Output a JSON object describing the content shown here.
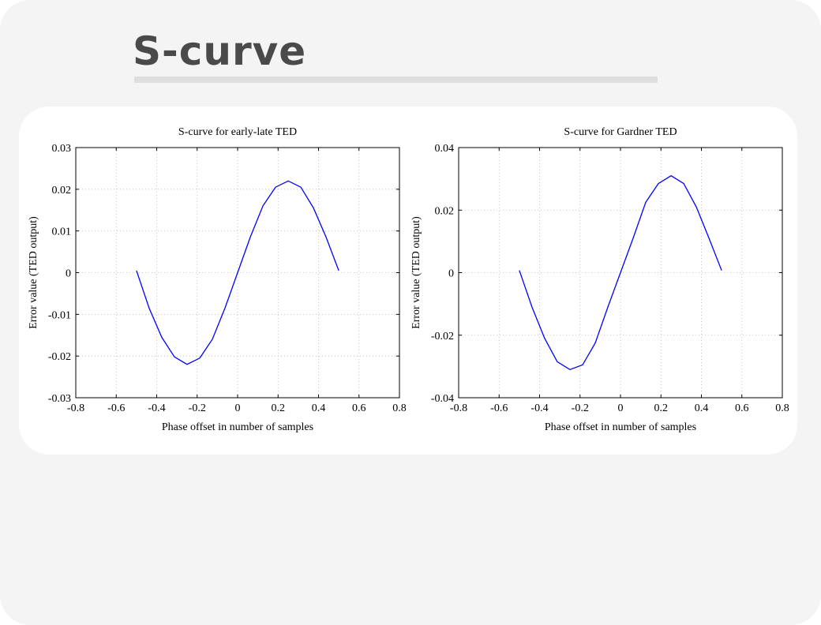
{
  "slide": {
    "title": "S-curve"
  },
  "chart_data": [
    {
      "type": "line",
      "title": "S-curve for early-late TED",
      "xlabel": "Phase offset in number of samples",
      "ylabel": "Error value (TED output)",
      "xlim": [
        -0.8,
        0.8
      ],
      "ylim": [
        -0.03,
        0.03
      ],
      "xticks": [
        "-0.8",
        "-0.6",
        "-0.4",
        "-0.2",
        "0",
        "0.2",
        "0.4",
        "0.6",
        "0.8"
      ],
      "yticks": [
        "0.03",
        "0.02",
        "0.01",
        "0",
        "-0.01",
        "-0.02",
        "-0.03"
      ],
      "grid": true,
      "line_color": "#0000ff",
      "series": [
        {
          "x": [
            -0.5,
            -0.4375,
            -0.375,
            -0.3125,
            -0.25,
            -0.1875,
            -0.125,
            -0.0625,
            0,
            0.0625,
            0.125,
            0.1875,
            0.25,
            0.3125,
            0.375,
            0.4375,
            0.5
          ],
          "values": [
            0.0005,
            -0.0085,
            -0.0155,
            -0.0202,
            -0.022,
            -0.0205,
            -0.016,
            -0.0085,
            0,
            0.0085,
            0.016,
            0.0205,
            0.022,
            0.0205,
            0.0155,
            0.0085,
            0.0005
          ]
        }
      ]
    },
    {
      "type": "line",
      "title": "S-curve for Gardner TED",
      "xlabel": "Phase offset in number of samples",
      "ylabel": "Error value (TED output)",
      "xlim": [
        -0.8,
        0.8
      ],
      "ylim": [
        -0.04,
        0.04
      ],
      "xticks": [
        "-0.8",
        "-0.6",
        "-0.4",
        "-0.2",
        "0",
        "0.2",
        "0.4",
        "0.6",
        "0.8"
      ],
      "yticks": [
        "0.04",
        "0.02",
        "0",
        "-0.02",
        "-0.04"
      ],
      "grid": true,
      "line_color": "#0000ff",
      "series": [
        {
          "x": [
            -0.5,
            -0.4375,
            -0.375,
            -0.3125,
            -0.25,
            -0.1875,
            -0.125,
            -0.0625,
            0,
            0.0625,
            0.125,
            0.1875,
            0.25,
            0.3125,
            0.375,
            0.4375,
            0.5
          ],
          "values": [
            0.0007,
            -0.011,
            -0.021,
            -0.0285,
            -0.031,
            -0.0295,
            -0.0225,
            -0.011,
            0,
            0.011,
            0.0225,
            0.0285,
            0.031,
            0.0285,
            0.021,
            0.011,
            0.0007
          ]
        }
      ]
    }
  ]
}
